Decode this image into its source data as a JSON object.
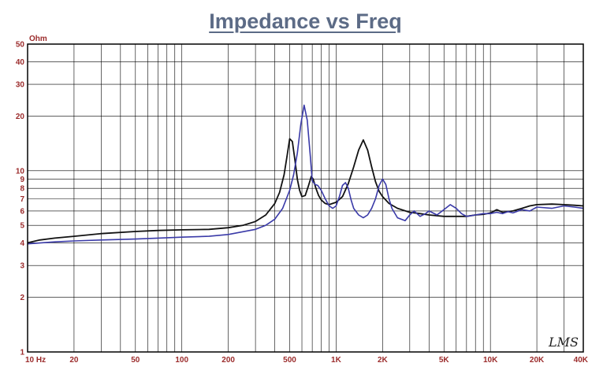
{
  "chart_data": {
    "type": "line",
    "title": "Impedance vs Freq",
    "ylabel": "Ohm",
    "x_scale": "log",
    "y_scale": "log",
    "xlim": [
      10,
      40000
    ],
    "ylim": [
      1,
      50
    ],
    "grid": true,
    "x_ticks": [
      {
        "value": 10,
        "label": "10 Hz"
      },
      {
        "value": 20,
        "label": "20"
      },
      {
        "value": 50,
        "label": "50"
      },
      {
        "value": 100,
        "label": "100"
      },
      {
        "value": 200,
        "label": "200"
      },
      {
        "value": 500,
        "label": "500"
      },
      {
        "value": 1000,
        "label": "1K"
      },
      {
        "value": 2000,
        "label": "2K"
      },
      {
        "value": 5000,
        "label": "5K"
      },
      {
        "value": 10000,
        "label": "10K"
      },
      {
        "value": 20000,
        "label": "20K"
      },
      {
        "value": 40000,
        "label": "40K"
      }
    ],
    "y_ticks": [
      {
        "value": 1,
        "label": "1"
      },
      {
        "value": 2,
        "label": "2"
      },
      {
        "value": 3,
        "label": "3"
      },
      {
        "value": 4,
        "label": "4"
      },
      {
        "value": 5,
        "label": "5"
      },
      {
        "value": 6,
        "label": "6"
      },
      {
        "value": 7,
        "label": "7"
      },
      {
        "value": 8,
        "label": "8"
      },
      {
        "value": 9,
        "label": "9"
      },
      {
        "value": 10,
        "label": "10"
      },
      {
        "value": 20,
        "label": "20"
      },
      {
        "value": 30,
        "label": "30"
      },
      {
        "value": 40,
        "label": "40"
      },
      {
        "value": 50,
        "label": "50"
      }
    ],
    "series": [
      {
        "color": "#111111",
        "x": [
          10,
          12,
          15,
          20,
          30,
          50,
          70,
          100,
          150,
          200,
          250,
          300,
          350,
          400,
          430,
          460,
          480,
          500,
          520,
          540,
          560,
          580,
          600,
          630,
          660,
          690,
          710,
          740,
          770,
          800,
          850,
          900,
          1000,
          1100,
          1200,
          1300,
          1400,
          1500,
          1600,
          1700,
          1800,
          1900,
          2000,
          2200,
          2500,
          3000,
          3500,
          4000,
          5000,
          6000,
          7000,
          8000,
          9000,
          10000,
          11000,
          12000,
          14000,
          16000,
          18000,
          20000,
          25000,
          30000,
          35000,
          40000
        ],
        "y": [
          4.0,
          4.15,
          4.25,
          4.35,
          4.5,
          4.62,
          4.68,
          4.72,
          4.75,
          4.85,
          5.0,
          5.25,
          5.7,
          6.6,
          7.6,
          9.5,
          12.0,
          15.0,
          14.5,
          11.5,
          9.0,
          7.8,
          7.2,
          7.3,
          8.2,
          9.3,
          9.0,
          8.0,
          7.3,
          6.9,
          6.6,
          6.5,
          6.7,
          7.2,
          8.5,
          10.5,
          13.0,
          14.8,
          13.0,
          10.5,
          8.7,
          7.7,
          7.2,
          6.6,
          6.2,
          5.9,
          5.8,
          5.7,
          5.6,
          5.6,
          5.6,
          5.7,
          5.75,
          5.85,
          6.1,
          5.9,
          6.0,
          6.2,
          6.4,
          6.5,
          6.55,
          6.5,
          6.45,
          6.4
        ]
      },
      {
        "color": "#3a3aa8",
        "x": [
          10,
          15,
          20,
          30,
          50,
          70,
          100,
          150,
          200,
          300,
          350,
          400,
          450,
          500,
          530,
          560,
          590,
          620,
          650,
          680,
          700,
          730,
          760,
          800,
          850,
          900,
          950,
          1000,
          1050,
          1100,
          1150,
          1200,
          1250,
          1300,
          1400,
          1500,
          1600,
          1700,
          1800,
          1900,
          2000,
          2100,
          2200,
          2300,
          2500,
          2800,
          3000,
          3200,
          3500,
          3800,
          4000,
          4500,
          5000,
          5500,
          6000,
          6500,
          7000,
          8000,
          9000,
          10000,
          11000,
          12000,
          13000,
          14000,
          16000,
          18000,
          20000,
          25000,
          30000,
          35000,
          40000
        ],
        "y": [
          3.95,
          4.05,
          4.1,
          4.15,
          4.2,
          4.25,
          4.3,
          4.35,
          4.45,
          4.75,
          5.0,
          5.4,
          6.2,
          7.8,
          9.5,
          12.5,
          18.0,
          23.0,
          19.0,
          12.0,
          8.8,
          8.4,
          8.3,
          7.8,
          7.0,
          6.4,
          6.2,
          6.4,
          7.2,
          8.3,
          8.6,
          8.0,
          6.9,
          6.2,
          5.7,
          5.5,
          5.7,
          6.2,
          7.0,
          8.3,
          9.0,
          8.4,
          7.0,
          6.2,
          5.5,
          5.3,
          5.7,
          6.0,
          5.6,
          5.8,
          6.0,
          5.7,
          6.1,
          6.5,
          6.2,
          5.8,
          5.6,
          5.7,
          5.8,
          5.8,
          5.9,
          5.8,
          5.95,
          5.85,
          6.1,
          6.0,
          6.3,
          6.2,
          6.4,
          6.3,
          6.2
        ]
      }
    ]
  }
}
